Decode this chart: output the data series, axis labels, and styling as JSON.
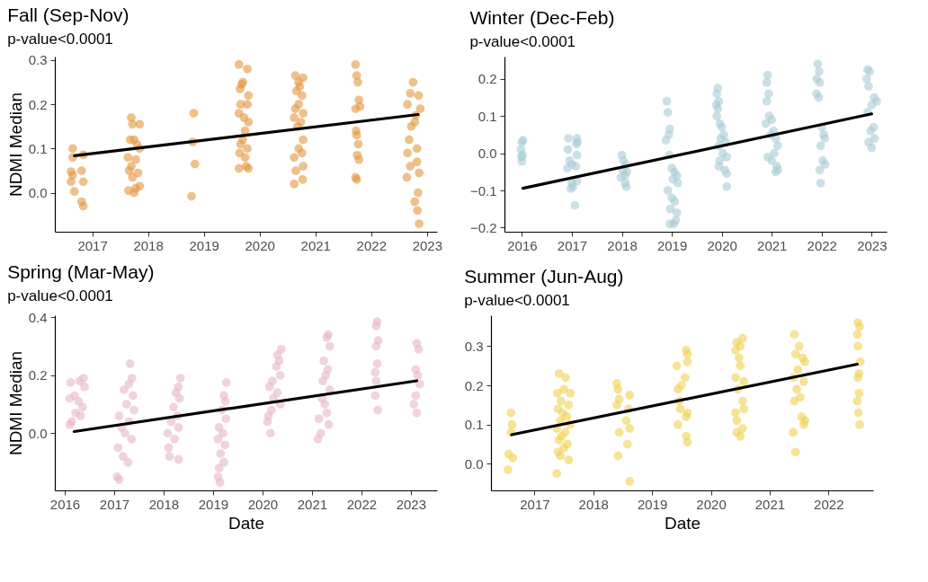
{
  "chart_data": [
    {
      "type": "scatter",
      "title": "Fall (Sep-Nov)",
      "subtitle": "p-value<0.0001",
      "ylabel": "NDMI Median",
      "grid": false,
      "xlim": [
        2016.33,
        2023.18
      ],
      "xticks": [
        2017,
        2018,
        2019,
        2020,
        2021,
        2022,
        2023
      ],
      "ylim": [
        -0.088,
        0.308
      ],
      "yticks": [
        {
          "value": 0,
          "label": "0.0"
        },
        {
          "value": 0.1,
          "label": "0.1"
        },
        {
          "value": 0.2,
          "label": "0.2"
        },
        {
          "value": 0.3,
          "label": "0.3"
        }
      ],
      "series": [
        {
          "marker": "circle",
          "color": "#e3963e",
          "x": [
            2016.65,
            2016.65,
            2016.62,
            2016.62,
            2016.68,
            2016.81,
            2016.84,
            2016.84,
            2016.81,
            2016.84,
            2016.65,
            2017.7,
            2017.72,
            2017.68,
            2017.75,
            2017.8,
            2017.85,
            2017.64,
            2017.7,
            2017.66,
            2017.72,
            2017.78,
            2017.65,
            2017.75,
            2017.85,
            2017.85,
            2017.78,
            2017.82,
            2018.82,
            2018.8,
            2018.84,
            2018.78,
            2019.63,
            2019.78,
            2019.7,
            2019.68,
            2019.65,
            2019.8,
            2019.66,
            2019.78,
            2019.63,
            2019.72,
            2019.8,
            2019.74,
            2019.7,
            2019.66,
            2019.78,
            2019.64,
            2019.74,
            2019.76,
            2019.63,
            2019.8,
            2020.64,
            2020.78,
            2020.7,
            2020.72,
            2020.66,
            2020.76,
            2020.7,
            2020.64,
            2020.78,
            2020.62,
            2020.74,
            2020.68,
            2020.78,
            2020.7,
            2020.76,
            2020.62,
            2020.78,
            2020.65,
            2020.77,
            2020.62,
            2021.72,
            2021.74,
            2021.76,
            2021.78,
            2021.8,
            2021.72,
            2021.73,
            2021.74,
            2021.77,
            2021.75,
            2021.78,
            2021.72,
            2021.74,
            2022.75,
            2022.7,
            2022.85,
            2022.65,
            2022.88,
            2022.8,
            2022.78,
            2022.72,
            2022.68,
            2022.82,
            2022.65,
            2022.82,
            2022.7,
            2022.86,
            2022.64,
            2022.84,
            2022.78,
            2022.83,
            2022.86
          ],
          "values": [
            0.1,
            0.08,
            0.048,
            0.025,
            0.003,
            0.05,
            0.086,
            0.025,
            -0.02,
            -0.03,
            0.04,
            0.17,
            0.155,
            0.12,
            0.12,
            0.11,
            0.1,
            0.08,
            0.06,
            0.05,
            0.035,
            0.01,
            0.005,
            0.0,
            0.015,
            0.155,
            0.075,
            0.045,
            0.18,
            0.115,
            0.065,
            -0.008,
            0.29,
            0.28,
            0.25,
            0.245,
            0.235,
            0.22,
            0.2,
            0.2,
            0.18,
            0.17,
            0.16,
            0.14,
            0.12,
            0.11,
            0.1,
            0.09,
            0.08,
            0.06,
            0.055,
            0.055,
            0.265,
            0.26,
            0.25,
            0.24,
            0.23,
            0.22,
            0.2,
            0.19,
            0.18,
            0.17,
            0.16,
            0.15,
            0.12,
            0.1,
            0.09,
            0.08,
            0.06,
            0.05,
            0.03,
            0.02,
            0.29,
            0.265,
            0.25,
            0.21,
            0.195,
            0.19,
            0.14,
            0.13,
            0.11,
            0.085,
            0.075,
            0.035,
            0.03,
            0.25,
            0.225,
            0.22,
            0.2,
            0.19,
            0.175,
            0.16,
            0.15,
            0.12,
            0.1,
            0.09,
            0.07,
            0.06,
            0.045,
            0.035,
            0.0,
            -0.02,
            -0.04,
            -0.07
          ]
        },
        {
          "type": "line",
          "marker": "none",
          "color": "#000000",
          "x": [
            2016.68,
            2022.84
          ],
          "values": [
            0.084,
            0.177
          ]
        }
      ]
    },
    {
      "type": "scatter",
      "title": "Winter (Dec-Feb)",
      "subtitle": "p-value<0.0001",
      "grid": false,
      "xlim": [
        2015.65,
        2023.3
      ],
      "xticks": [
        2016,
        2017,
        2018,
        2019,
        2020,
        2021,
        2022,
        2023
      ],
      "ylim": [
        -0.211,
        0.26
      ],
      "yticks": [
        -0.2,
        -0.1,
        {
          "value": 0,
          "label": "0.0"
        },
        0.1,
        0.2
      ],
      "series": [
        {
          "marker": "circle",
          "color": "#a9ccd6",
          "x": [
            2016.0,
            2016.02,
            2015.98,
            2016.01,
            2015.99,
            2016.0,
            2016.93,
            2017.1,
            2017.11,
            2017.09,
            2016.92,
            2017.1,
            2016.95,
            2017.0,
            2017.08,
            2016.91,
            2017.0,
            2017.02,
            2016.98,
            2017.06,
            2017.1,
            2018.0,
            2018.03,
            2018.08,
            2018.02,
            2018.1,
            2018.06,
            2017.98,
            2018.07,
            2018.09,
            2018.9,
            2018.92,
            2018.96,
            2018.94,
            2018.88,
            2018.95,
            2019.0,
            2019.05,
            2019.1,
            2019.02,
            2019.12,
            2018.92,
            2019.0,
            2019.06,
            2018.97,
            2019.1,
            2019.08,
            2018.96,
            2019.04,
            2019.92,
            2019.9,
            2019.94,
            2019.89,
            2019.92,
            2019.9,
            2019.96,
            2020.0,
            2020.04,
            2019.98,
            2020.08,
            2019.94,
            2020.02,
            2020.1,
            2019.96,
            2019.94,
            2020.06,
            2020.1,
            2020.1,
            2020.92,
            2020.9,
            2020.94,
            2020.9,
            2020.95,
            2021.0,
            2020.88,
            2021.04,
            2020.98,
            2021.08,
            2021.12,
            2021.05,
            2020.92,
            2021.0,
            2021.1,
            2021.12,
            2021.08,
            2021.92,
            2021.95,
            2021.9,
            2021.96,
            2021.9,
            2021.94,
            2022.0,
            2022.04,
            2022.06,
            2021.98,
            2022.02,
            2022.07,
            2021.96,
            2021.98,
            2022.92,
            2022.96,
            2022.9,
            2022.94,
            2023.05,
            2023.1,
            2023.0,
            2022.92,
            2023.04,
            2022.98,
            2023.06,
            2022.94,
            2023.0
          ],
          "values": [
            0.03,
            0.035,
            0.01,
            -0.005,
            -0.01,
            -0.022,
            0.04,
            0.04,
            0.03,
            0.025,
            0.01,
            -0.005,
            -0.02,
            -0.03,
            -0.035,
            -0.04,
            -0.08,
            -0.09,
            -0.095,
            -0.14,
            -0.075,
            -0.005,
            -0.02,
            -0.03,
            -0.045,
            -0.05,
            -0.06,
            -0.065,
            -0.08,
            -0.09,
            0.14,
            0.11,
            0.065,
            0.05,
            0.035,
            -0.005,
            -0.04,
            -0.05,
            -0.06,
            -0.07,
            -0.08,
            -0.1,
            -0.12,
            -0.13,
            -0.15,
            -0.16,
            -0.18,
            -0.19,
            -0.19,
            0.175,
            0.16,
            0.14,
            0.13,
            0.12,
            0.1,
            0.08,
            0.07,
            0.05,
            0.04,
            0.03,
            0.02,
            0.0,
            -0.01,
            -0.02,
            -0.035,
            -0.045,
            -0.055,
            -0.09,
            0.21,
            0.19,
            0.16,
            0.14,
            0.1,
            0.09,
            0.08,
            0.06,
            0.05,
            0.04,
            0.02,
            0.0,
            -0.01,
            -0.02,
            -0.035,
            -0.045,
            -0.05,
            0.24,
            0.22,
            0.2,
            0.19,
            0.16,
            0.15,
            0.07,
            0.05,
            0.04,
            0.02,
            -0.02,
            -0.03,
            -0.045,
            -0.08,
            0.225,
            0.22,
            0.2,
            0.18,
            0.15,
            0.14,
            0.13,
            0.11,
            0.07,
            0.06,
            0.04,
            0.03,
            0.015
          ]
        },
        {
          "type": "line",
          "marker": "none",
          "color": "#000000",
          "x": [
            2016.02,
            2023.0
          ],
          "values": [
            -0.094,
            0.106
          ]
        }
      ]
    },
    {
      "type": "scatter",
      "title": "Spring (Mar-May)",
      "subtitle": "p-value<0.0001",
      "xlabel": "Date",
      "ylabel": "NDMI Median",
      "grid": false,
      "xlim": [
        2015.8,
        2023.53
      ],
      "xticks": [
        2016,
        2017,
        2018,
        2019,
        2020,
        2021,
        2022,
        2023
      ],
      "ylim": [
        -0.197,
        0.407
      ],
      "yticks": [
        {
          "value": 0,
          "label": "0.0"
        },
        {
          "value": 0.2,
          "label": "0.2"
        },
        {
          "value": 0.4,
          "label": "0.4"
        }
      ],
      "series": [
        {
          "marker": "circle",
          "color": "#e8b6c3",
          "x": [
            2016.38,
            2016.3,
            2016.12,
            2016.4,
            2016.2,
            2016.1,
            2016.28,
            2016.36,
            2016.22,
            2016.32,
            2016.14,
            2016.1,
            2017.32,
            2017.36,
            2017.3,
            2017.2,
            2017.38,
            2017.25,
            2017.4,
            2017.1,
            2017.3,
            2017.15,
            2017.22,
            2017.35,
            2017.08,
            2017.18,
            2017.28,
            2017.06,
            2017.1,
            2018.34,
            2018.3,
            2018.25,
            2018.32,
            2018.2,
            2018.28,
            2018.15,
            2018.3,
            2018.08,
            2018.22,
            2018.1,
            2018.12,
            2018.3,
            2019.27,
            2019.22,
            2019.25,
            2019.18,
            2019.26,
            2019.12,
            2019.2,
            2019.1,
            2019.24,
            2019.15,
            2019.22,
            2019.12,
            2019.1,
            2019.14,
            2020.38,
            2020.3,
            2020.34,
            2020.28,
            2020.36,
            2020.2,
            2020.14,
            2020.3,
            2020.22,
            2020.36,
            2020.18,
            2020.12,
            2020.1,
            2020.16,
            2021.33,
            2021.3,
            2021.36,
            2021.24,
            2021.32,
            2021.28,
            2021.22,
            2021.36,
            2021.2,
            2021.26,
            2021.3,
            2021.14,
            2021.34,
            2021.18,
            2021.12,
            2022.32,
            2022.3,
            2022.34,
            2022.3,
            2022.32,
            2022.28,
            2022.3,
            2022.28,
            2022.33,
            2023.12,
            2023.16,
            2023.1,
            2023.14,
            2023.18,
            2023.1,
            2023.06,
            2023.12
          ],
          "values": [
            0.19,
            0.18,
            0.175,
            0.16,
            0.13,
            0.12,
            0.11,
            0.09,
            0.07,
            0.06,
            0.04,
            0.03,
            0.24,
            0.19,
            0.17,
            0.15,
            0.13,
            0.1,
            0.08,
            0.06,
            0.04,
            0.02,
            0.0,
            -0.02,
            -0.05,
            -0.08,
            -0.1,
            -0.15,
            -0.16,
            0.19,
            0.16,
            0.14,
            0.12,
            0.09,
            0.06,
            0.04,
            0.02,
            0.0,
            -0.02,
            -0.05,
            -0.08,
            -0.09,
            0.175,
            0.13,
            0.11,
            0.08,
            0.05,
            0.02,
            0.0,
            -0.02,
            -0.04,
            -0.07,
            -0.1,
            -0.12,
            -0.15,
            -0.17,
            0.29,
            0.27,
            0.25,
            0.23,
            0.2,
            0.18,
            0.16,
            0.14,
            0.12,
            0.1,
            0.08,
            0.06,
            0.04,
            0.0,
            0.34,
            0.33,
            0.3,
            0.25,
            0.22,
            0.2,
            0.18,
            0.15,
            0.12,
            0.1,
            0.07,
            0.05,
            0.03,
            0.0,
            -0.02,
            0.385,
            0.37,
            0.32,
            0.3,
            0.24,
            0.21,
            0.18,
            0.13,
            0.08,
            0.31,
            0.29,
            0.22,
            0.2,
            0.17,
            0.13,
            0.1,
            0.07
          ]
        },
        {
          "type": "line",
          "marker": "none",
          "color": "#000000",
          "x": [
            2016.19,
            2023.12
          ],
          "values": [
            0.006,
            0.181
          ]
        }
      ]
    },
    {
      "type": "scatter",
      "title": "Summer (Jun-Aug)",
      "subtitle": "p-value<0.0001",
      "xlabel": "Date",
      "grid": false,
      "xlim": [
        2016.26,
        2022.76
      ],
      "xticks": [
        2017,
        2018,
        2019,
        2020,
        2021,
        2022
      ],
      "ylim": [
        -0.068,
        0.379
      ],
      "yticks": [
        {
          "value": 0,
          "label": "0.0"
        },
        {
          "value": 0.1,
          "label": "0.1"
        },
        {
          "value": 0.2,
          "label": "0.2"
        },
        {
          "value": 0.3,
          "label": "0.3"
        }
      ],
      "series": [
        {
          "marker": "circle",
          "color": "#f0d050",
          "x": [
            2016.6,
            2016.62,
            2016.6,
            2016.56,
            2016.63,
            2016.55,
            2017.42,
            2017.53,
            2017.5,
            2017.39,
            2017.61,
            2017.45,
            2017.58,
            2017.4,
            2017.48,
            2017.55,
            2017.44,
            2017.6,
            2017.38,
            2017.52,
            2017.46,
            2017.42,
            2017.56,
            2017.5,
            2017.4,
            2017.44,
            2017.58,
            2017.38,
            2018.4,
            2018.42,
            2018.62,
            2018.44,
            2018.4,
            2018.6,
            2018.56,
            2018.62,
            2018.44,
            2018.58,
            2018.42,
            2018.62,
            2019.58,
            2019.6,
            2019.6,
            2019.42,
            2019.56,
            2019.5,
            2019.44,
            2019.46,
            2019.48,
            2019.6,
            2019.58,
            2019.44,
            2019.58,
            2019.6,
            2020.54,
            2020.44,
            2020.5,
            2020.42,
            2020.48,
            2020.5,
            2020.42,
            2020.56,
            2020.46,
            2020.54,
            2020.56,
            2020.42,
            2020.44,
            2020.54,
            2020.44,
            2020.5,
            2021.42,
            2021.5,
            2021.44,
            2021.56,
            2021.6,
            2021.48,
            2021.4,
            2021.58,
            2021.46,
            2021.52,
            2021.42,
            2021.54,
            2021.6,
            2021.58,
            2021.4,
            2021.44,
            2022.5,
            2022.53,
            2022.49,
            2022.5,
            2022.54,
            2022.52,
            2022.5,
            2022.52,
            2022.49,
            2022.51,
            2022.53
          ],
          "values": [
            0.13,
            0.1,
            0.08,
            0.025,
            0.015,
            -0.015,
            0.23,
            0.22,
            0.19,
            0.18,
            0.18,
            0.16,
            0.15,
            0.14,
            0.13,
            0.12,
            0.11,
            0.1,
            0.09,
            0.08,
            0.07,
            0.06,
            0.05,
            0.04,
            0.03,
            0.02,
            0.01,
            -0.025,
            0.205,
            0.19,
            0.175,
            0.165,
            0.15,
            0.14,
            0.11,
            0.09,
            0.08,
            0.05,
            0.02,
            -0.045,
            0.29,
            0.28,
            0.26,
            0.25,
            0.22,
            0.2,
            0.19,
            0.16,
            0.14,
            0.13,
            0.12,
            0.1,
            0.07,
            0.055,
            0.32,
            0.31,
            0.3,
            0.29,
            0.27,
            0.25,
            0.22,
            0.21,
            0.19,
            0.16,
            0.14,
            0.13,
            0.11,
            0.09,
            0.08,
            0.07,
            0.33,
            0.3,
            0.28,
            0.27,
            0.26,
            0.24,
            0.22,
            0.21,
            0.19,
            0.17,
            0.16,
            0.12,
            0.11,
            0.1,
            0.08,
            0.03,
            0.36,
            0.35,
            0.33,
            0.3,
            0.26,
            0.23,
            0.22,
            0.18,
            0.16,
            0.13,
            0.1
          ]
        },
        {
          "type": "line",
          "marker": "none",
          "color": "#000000",
          "x": [
            2016.61,
            2022.49
          ],
          "values": [
            0.074,
            0.254
          ]
        }
      ]
    }
  ]
}
